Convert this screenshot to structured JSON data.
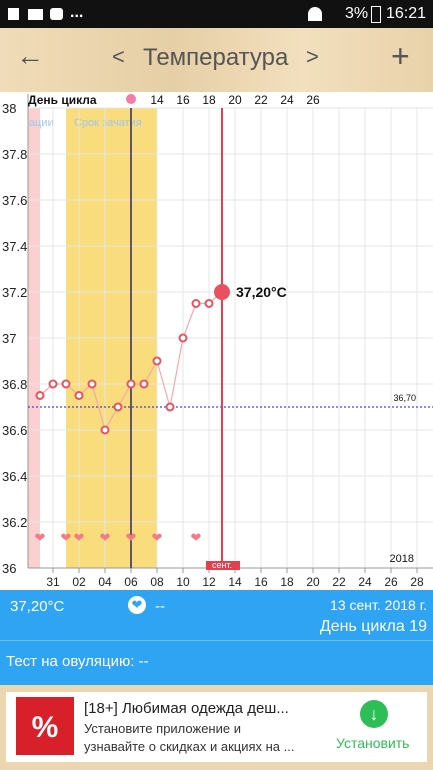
{
  "status_bar": {
    "more": "...",
    "battery": "3%",
    "time": "16:21"
  },
  "header": {
    "back": "←",
    "prev": "<",
    "title": "Температура",
    "next": ">",
    "add": "+"
  },
  "chart_data": {
    "type": "line",
    "cycle_label": "День цикла",
    "categories": [
      null,
      "31",
      null,
      "02",
      null,
      "04",
      null,
      "06",
      null,
      "08",
      null,
      "10",
      null,
      "12",
      null,
      "14",
      null,
      "16",
      null,
      "18",
      null,
      "20",
      null,
      "22",
      null,
      "24",
      null,
      "26",
      null,
      "28"
    ],
    "cycle_days": [
      null,
      null,
      null,
      null,
      null,
      null,
      null,
      null,
      null,
      "14",
      null,
      "16",
      null,
      "18",
      null,
      "20",
      null,
      "22",
      null,
      "24",
      null,
      "26",
      null,
      null,
      null,
      null,
      null,
      null,
      null,
      null
    ],
    "values": [
      36.75,
      36.8,
      36.8,
      36.75,
      36.8,
      36.6,
      36.7,
      36.8,
      36.8,
      36.9,
      36.7,
      37,
      37.15,
      37.15,
      37.2,
      null,
      null,
      null,
      null,
      null,
      null,
      null,
      null,
      null,
      null,
      null,
      null,
      null,
      null,
      null
    ],
    "hearts": [
      true,
      false,
      true,
      true,
      false,
      true,
      false,
      true,
      false,
      true,
      false,
      false,
      true,
      false,
      false,
      false,
      false,
      false,
      false,
      false,
      false,
      false,
      false,
      false,
      false,
      false,
      false,
      false,
      false,
      false
    ],
    "color": "#e8525f",
    "line_color": "#f4a8ae",
    "ylim": [
      36,
      38
    ],
    "yticks": [
      36,
      36.2,
      36.4,
      36.6,
      36.8,
      37,
      37.2,
      37.4,
      37.6,
      37.8,
      38
    ],
    "grid": true,
    "reference_line": {
      "value": 36.7,
      "label": "36,70"
    },
    "highlight_label": "37,20°C",
    "band_labels": [
      "ации",
      "Срок зачатия"
    ],
    "month_label": "сент.",
    "year_label": "2018"
  },
  "summary": {
    "temperature": "37,20°C",
    "heart_value": "--",
    "date": "13 сент. 2018 г.",
    "cycle_day": "День цикла 19",
    "ovulation_test": "Тест на овуляцию: --"
  },
  "ad": {
    "title": "[18+] Любимая одежда деш...",
    "text_line1": "Установите приложение и",
    "text_line2": "узнавайте о скидках и акциях на ...",
    "button": "Установить"
  }
}
